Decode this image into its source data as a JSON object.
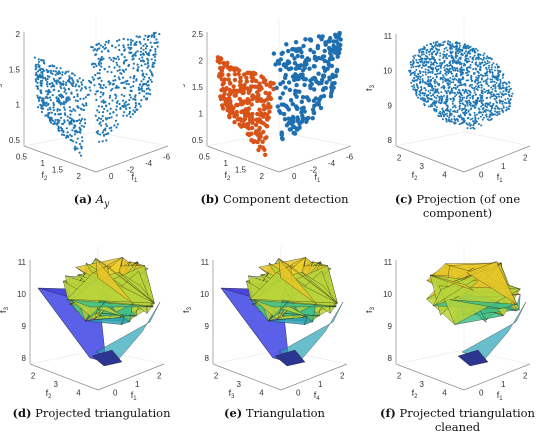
{
  "figure": {
    "panels": [
      {
        "letter": "(a)",
        "caption_text": "A",
        "caption_sub": "y",
        "axes": {
          "z_label": "f",
          "z_label_sub": "3",
          "x_label": "f",
          "x_label_sub": "2",
          "y_label": "f",
          "y_label_sub": "1",
          "z_ticks": [
            "2",
            "1.5",
            "1",
            "0.5"
          ],
          "x_ticks": [
            "0.5",
            "1",
            "1.5",
            "2"
          ],
          "y_ticks": [
            "0",
            "-2",
            "-4",
            "-6"
          ]
        },
        "render": "two-sheets-blue"
      },
      {
        "letter": "(b)",
        "caption_text": "Component detection",
        "axes": {
          "z_label": "f",
          "z_label_sub": "3",
          "x_label": "f",
          "x_label_sub": "2",
          "y_label": "f",
          "y_label_sub": "1",
          "z_ticks": [
            "2.5",
            "2",
            "1.5",
            "1",
            "0.5"
          ],
          "x_ticks": [
            "0.5",
            "1",
            "1.5",
            "2"
          ],
          "y_ticks": [
            "0",
            "-2",
            "-4",
            "-6"
          ]
        },
        "render": "two-sheets-colored"
      },
      {
        "letter": "(c)",
        "caption_text": "Projection (of one component)",
        "axes": {
          "z_label": "f",
          "z_label_sub": "3",
          "x_label": "f",
          "x_label_sub": "2",
          "y_label": "f",
          "y_label_sub": "1",
          "z_ticks": [
            "11",
            "10",
            "9",
            "8"
          ],
          "x_ticks": [
            "2",
            "3",
            "4"
          ],
          "y_ticks": [
            "0",
            "1",
            "2"
          ]
        },
        "render": "projection-scatter"
      },
      {
        "letter": "(d)",
        "caption_text": "Projected triangulation",
        "axes": {
          "z_label": "f",
          "z_label_sub": "3",
          "x_label": "f",
          "x_label_sub": "2",
          "y_label": "f",
          "y_label_sub": "1",
          "z_ticks": [
            "11",
            "10",
            "9",
            "8"
          ],
          "x_ticks": [
            "2",
            "3",
            "4"
          ],
          "y_ticks": [
            "0",
            "1",
            "2"
          ]
        },
        "render": "mesh-with-blue-face"
      },
      {
        "letter": "(e)",
        "caption_text": "Triangulation",
        "axes": {
          "z_label": "f",
          "z_label_sub": "3",
          "x_label": "f",
          "x_label_sub": "3",
          "y_label": "f",
          "y_label_sub": "4",
          "z_ticks": [
            "11",
            "10",
            "9",
            "8"
          ],
          "x_ticks": [
            "2",
            "3",
            "4"
          ],
          "y_ticks": [
            "0",
            "1",
            "2"
          ]
        },
        "render": "mesh-with-blue-face"
      },
      {
        "letter": "(f)",
        "caption_text": "Projected triangulation cleaned",
        "axes": {
          "z_label": "f",
          "z_label_sub": "3",
          "x_label": "f",
          "x_label_sub": "2",
          "y_label": "f",
          "y_label_sub": "1",
          "z_ticks": [
            "11",
            "10",
            "9",
            "8"
          ],
          "x_ticks": [
            "2",
            "3",
            "4"
          ],
          "y_ticks": [
            "0",
            "1",
            "2"
          ]
        },
        "render": "mesh-clean"
      }
    ],
    "colors": {
      "scatter_blue": "#1f77b4",
      "component_orange": "#d95319",
      "component_blue": "#1f6fb0",
      "face_blue": "#4747e0",
      "mesh_yellow": "#f2d22e",
      "mesh_green": "#3fbf8a",
      "mesh_teal": "#2aa3b8",
      "mesh_navy": "#2c3590"
    }
  }
}
